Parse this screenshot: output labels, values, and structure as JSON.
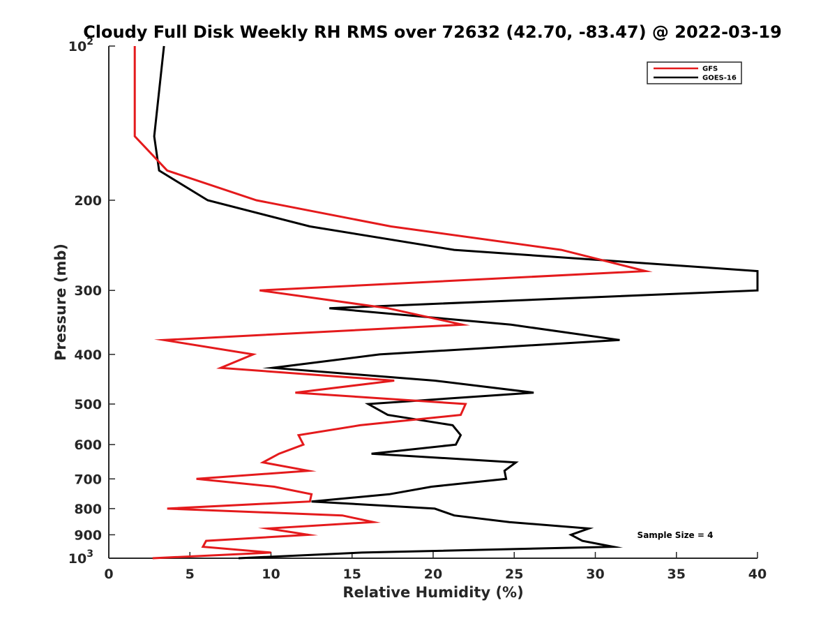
{
  "chart_data": {
    "type": "line",
    "title": "Cloudy Full Disk Weekly RH RMS over 72632 (42.70, -83.47) @ 2022-03-19",
    "xlabel": "Relative Humidity (%)",
    "ylabel": "Pressure (mb)",
    "xlim": [
      0,
      40
    ],
    "ylim": [
      100,
      1000
    ],
    "y_scale": "log",
    "y_reversed": true,
    "grid": false,
    "legend_position": "top-right",
    "x_ticks": [
      {
        "value": 0,
        "label": "0"
      },
      {
        "value": 5,
        "label": "5"
      },
      {
        "value": 10,
        "label": "10"
      },
      {
        "value": 15,
        "label": "15"
      },
      {
        "value": 20,
        "label": "20"
      },
      {
        "value": 25,
        "label": "25"
      },
      {
        "value": 30,
        "label": "30"
      },
      {
        "value": 35,
        "label": "35"
      },
      {
        "value": 40,
        "label": "40"
      }
    ],
    "y_ticks": [
      {
        "value": 100,
        "label": "10",
        "sup": "2"
      },
      {
        "value": 200,
        "label": "200"
      },
      {
        "value": 300,
        "label": "300"
      },
      {
        "value": 400,
        "label": "400"
      },
      {
        "value": 500,
        "label": "500"
      },
      {
        "value": 600,
        "label": "600"
      },
      {
        "value": 700,
        "label": "700"
      },
      {
        "value": 800,
        "label": "800"
      },
      {
        "value": 900,
        "label": "900"
      },
      {
        "value": 1000,
        "label": "10",
        "sup": "3"
      }
    ],
    "annotation": "Sample Size = 4",
    "series": [
      {
        "name": "GFS",
        "color": "#e41a1c",
        "points": [
          {
            "p": 100,
            "rh": 1.6
          },
          {
            "p": 150,
            "rh": 1.6
          },
          {
            "p": 175,
            "rh": 3.6
          },
          {
            "p": 200,
            "rh": 9.1
          },
          {
            "p": 225,
            "rh": 17.4
          },
          {
            "p": 250,
            "rh": 27.9
          },
          {
            "p": 275,
            "rh": 33.1
          },
          {
            "p": 300,
            "rh": 9.3
          },
          {
            "p": 325,
            "rh": 17.2
          },
          {
            "p": 350,
            "rh": 21.8
          },
          {
            "p": 375,
            "rh": 3.4
          },
          {
            "p": 400,
            "rh": 8.9
          },
          {
            "p": 425,
            "rh": 6.9
          },
          {
            "p": 450,
            "rh": 17.6
          },
          {
            "p": 475,
            "rh": 11.5
          },
          {
            "p": 500,
            "rh": 22.0
          },
          {
            "p": 525,
            "rh": 21.7
          },
          {
            "p": 550,
            "rh": 15.5
          },
          {
            "p": 575,
            "rh": 11.7
          },
          {
            "p": 600,
            "rh": 12.0
          },
          {
            "p": 625,
            "rh": 10.5
          },
          {
            "p": 650,
            "rh": 9.5
          },
          {
            "p": 675,
            "rh": 12.3
          },
          {
            "p": 700,
            "rh": 5.4
          },
          {
            "p": 725,
            "rh": 10.2
          },
          {
            "p": 750,
            "rh": 12.5
          },
          {
            "p": 775,
            "rh": 12.4
          },
          {
            "p": 800,
            "rh": 3.6
          },
          {
            "p": 825,
            "rh": 14.4
          },
          {
            "p": 850,
            "rh": 16.3
          },
          {
            "p": 875,
            "rh": 9.8
          },
          {
            "p": 900,
            "rh": 12.3
          },
          {
            "p": 925,
            "rh": 6.0
          },
          {
            "p": 950,
            "rh": 5.8
          },
          {
            "p": 975,
            "rh": 10.0
          },
          {
            "p": 1000,
            "rh": 2.7
          }
        ]
      },
      {
        "name": "GOES-16",
        "color": "#000000",
        "points": [
          {
            "p": 100,
            "rh": 3.4
          },
          {
            "p": 150,
            "rh": 2.8
          },
          {
            "p": 175,
            "rh": 3.1
          },
          {
            "p": 200,
            "rh": 6.1
          },
          {
            "p": 225,
            "rh": 12.4
          },
          {
            "p": 250,
            "rh": 21.3
          },
          {
            "p": 275,
            "rh": 40.0
          },
          {
            "p": 300,
            "rh": 40.0
          },
          {
            "p": 325,
            "rh": 13.6
          },
          {
            "p": 350,
            "rh": 24.8
          },
          {
            "p": 375,
            "rh": 31.5
          },
          {
            "p": 400,
            "rh": 16.7
          },
          {
            "p": 425,
            "rh": 10.1
          },
          {
            "p": 450,
            "rh": 20.1
          },
          {
            "p": 475,
            "rh": 26.2
          },
          {
            "p": 500,
            "rh": 16.0
          },
          {
            "p": 525,
            "rh": 17.2
          },
          {
            "p": 550,
            "rh": 21.2
          },
          {
            "p": 575,
            "rh": 21.7
          },
          {
            "p": 600,
            "rh": 21.4
          },
          {
            "p": 625,
            "rh": 16.2
          },
          {
            "p": 650,
            "rh": 25.1
          },
          {
            "p": 675,
            "rh": 24.4
          },
          {
            "p": 700,
            "rh": 24.5
          },
          {
            "p": 725,
            "rh": 19.9
          },
          {
            "p": 750,
            "rh": 17.3
          },
          {
            "p": 775,
            "rh": 12.5
          },
          {
            "p": 800,
            "rh": 20.1
          },
          {
            "p": 825,
            "rh": 21.3
          },
          {
            "p": 850,
            "rh": 24.7
          },
          {
            "p": 875,
            "rh": 29.6
          },
          {
            "p": 900,
            "rh": 28.5
          },
          {
            "p": 925,
            "rh": 29.2
          },
          {
            "p": 950,
            "rh": 31.1
          },
          {
            "p": 975,
            "rh": 15.6
          },
          {
            "p": 1000,
            "rh": 8.0
          }
        ]
      }
    ]
  }
}
